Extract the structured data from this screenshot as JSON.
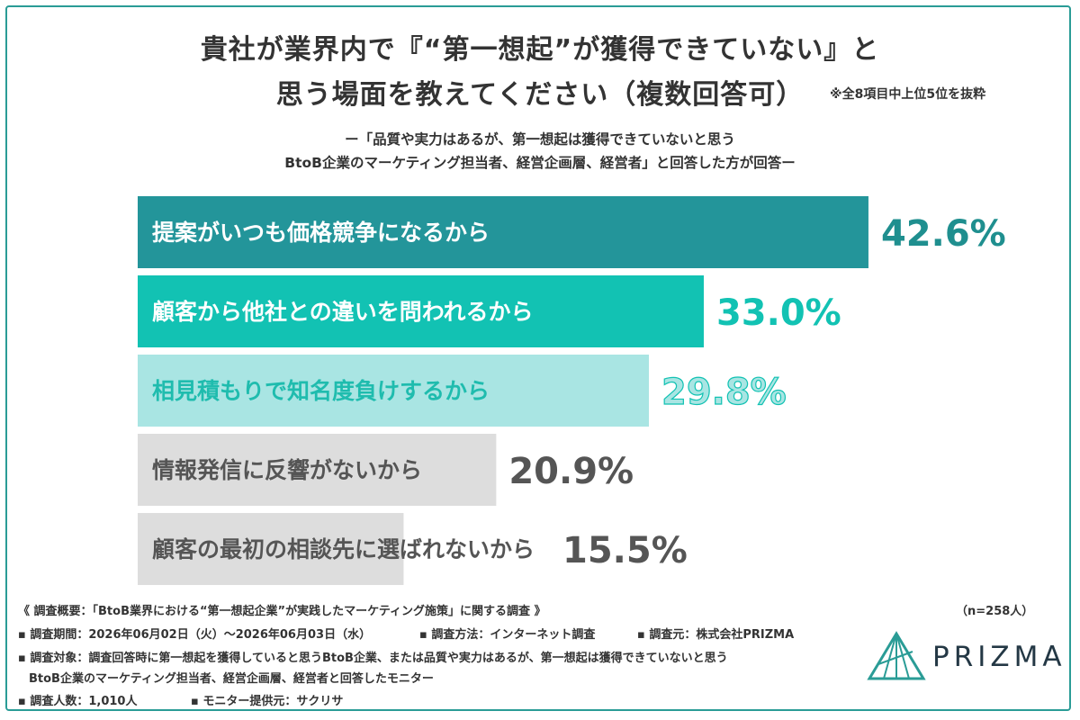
{
  "title": {
    "line1": "貴社が業界内で『“第一想起”が獲得できていない』と",
    "line2": "思う場面を教えてください（複数回答可）",
    "note": "※全8項目中上位5位を抜粋"
  },
  "subtitle": {
    "line1": "ー「品質や実力はあるが、第一想起は獲得できていないと思う",
    "line2": "BtoB企業のマーケティング担当者、経営企画層、経営者」と回答した方が回答ー"
  },
  "chart_data": {
    "type": "bar",
    "orientation": "horizontal",
    "categories": [
      "提案がいつも価格競争になるから",
      "顧客から他社との違いを問われるから",
      "相見積もりで知名度負けするから",
      "情報発信に反響がないから",
      "顧客の最初の相談先に選ばれないから"
    ],
    "values": [
      42.6,
      33.0,
      29.8,
      20.9,
      15.5
    ],
    "value_labels": [
      "42.6%",
      "33.0%",
      "29.8%",
      "20.9%",
      "15.5%"
    ],
    "bar_colors": [
      "#23959a",
      "#12c2b3",
      "#a9e5e3",
      "#dddddd",
      "#dddddd"
    ],
    "label_colors": [
      "#ffffff",
      "#ffffff",
      "#1fbcae",
      "#555555",
      "#555555"
    ],
    "value_colors": [
      "#1f8f8f",
      "#12c2b3",
      "#a9e5e3",
      "#555555",
      "#555555"
    ],
    "grid": false,
    "legend": "none"
  },
  "footer": {
    "line1": "《 調査概要：「BtoB業界における“第一想起企業”が実践したマーケティング施策」に関する調査 》",
    "line2a": "▪ 調査期間：2026年06月02日（火）〜2026年06月03日（水）",
    "line2b": "▪ 調査方法：インターネット調査",
    "line2c": "▪ 調査元：株式会社PRIZMA",
    "line3": "▪ 調査対象：調査回答時に第一想起を獲得していると思うBtoB企業、または品質や実力はあるが、第一想起は獲得できていないと思う",
    "line4": "BtoB企業のマーケティング担当者、経営企画層、経営者と回答したモニター",
    "line5a": "▪ 調査人数：1,010人",
    "line5b": "▪ モニター提供元：サクリサ",
    "sample": "（n=258人）"
  },
  "logo": {
    "text": "PRIZMA",
    "icon": "prism-icon"
  }
}
